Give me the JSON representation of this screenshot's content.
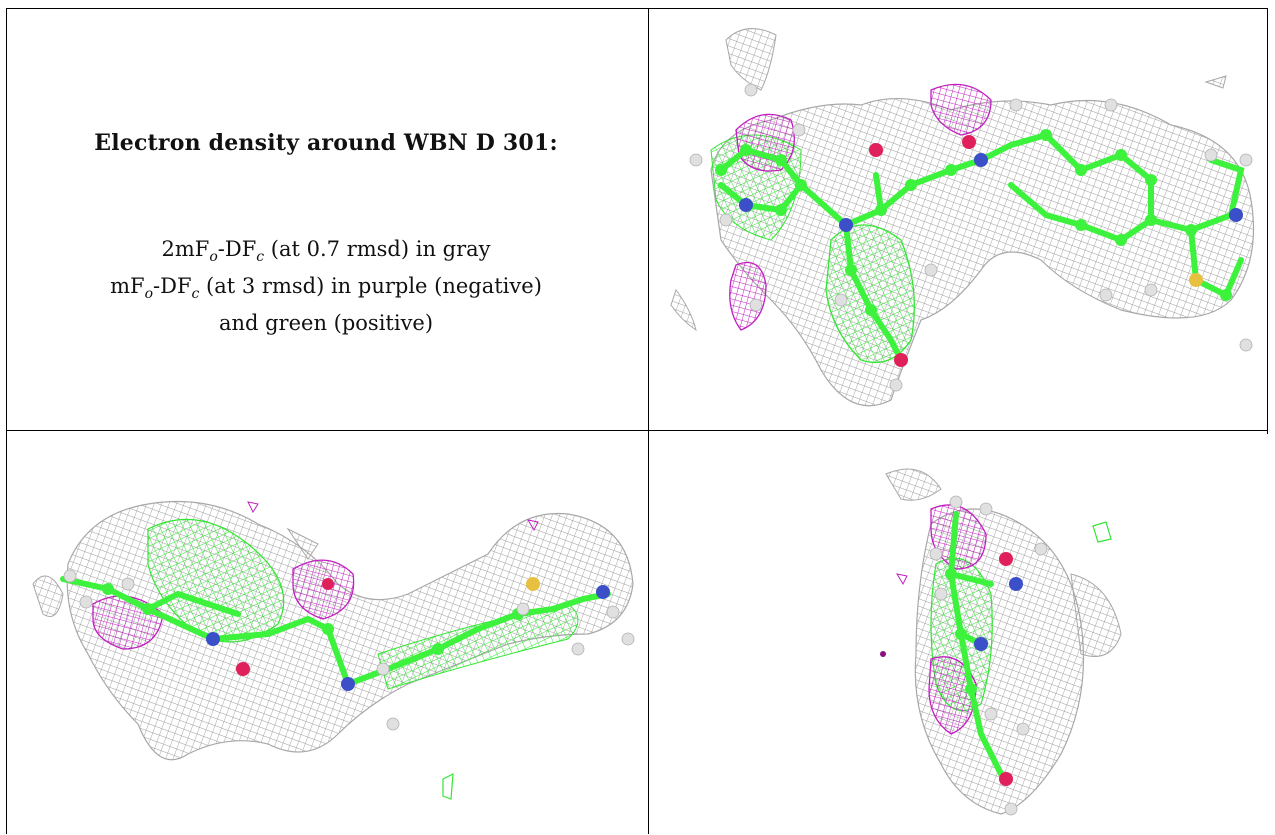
{
  "caption": {
    "title": "Electron density around WBN D 301:",
    "line1_prefix": "2mF",
    "line1_mid": "-DF",
    "line1_suffix": " (at 0.7 rmsd) in gray",
    "line2_prefix": "mF",
    "line2_mid": "-DF",
    "line2_suffix": " (at 3 rmsd) in purple (negative)",
    "line3": "and green (positive)",
    "sub_o": "o",
    "sub_c": "c"
  },
  "colors": {
    "mesh_gray": "#9c9c9c",
    "mesh_green": "#33e633",
    "mesh_purple": "#c020c0",
    "carbon": "#3df23d",
    "nitrogen": "#3a4fc8",
    "oxygen": "#e0205a",
    "sulfur": "#e8c040",
    "hydrogen": "#e8e8e8",
    "grid_line": "#000000"
  },
  "panels": [
    {
      "id": "top-right",
      "view": "front"
    },
    {
      "id": "bottom-left",
      "view": "side"
    },
    {
      "id": "bottom-right",
      "view": "end-on"
    }
  ]
}
